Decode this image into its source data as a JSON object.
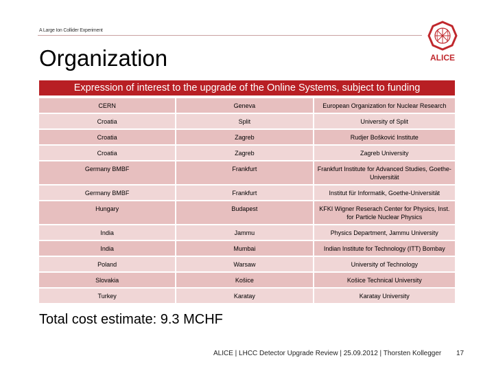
{
  "header": {
    "tagline": "A Large Ion Collider Experiment",
    "logo_text": "ALICE",
    "title": "Organization"
  },
  "banner": "Expression of interest to the upgrade of the Online Systems, subject to funding",
  "table": {
    "rows": [
      [
        "CERN",
        "Geneva",
        "European Organization for Nuclear Research"
      ],
      [
        "Croatia",
        "Split",
        "University of Split"
      ],
      [
        "Croatia",
        "Zagreb",
        "Rudjer Bošković Institute"
      ],
      [
        "Croatia",
        "Zagreb",
        "Zagreb University"
      ],
      [
        "Germany BMBF",
        "Frankfurt",
        "Frankfurt Institute for Advanced Studies, Goethe-Universität"
      ],
      [
        "Germany BMBF",
        "Frankfurt",
        "Institut für Informatik, Goethe-Universität"
      ],
      [
        "Hungary",
        "Budapest",
        "KFKI Wigner Reserach Center for Physics, Inst. for Particle Nuclear Physics"
      ],
      [
        "India",
        "Jammu",
        "Physics Department, Jammu University"
      ],
      [
        "India",
        "Mumbai",
        "Indian Institute for Technology (ITT) Bombay"
      ],
      [
        "Poland",
        "Warsaw",
        "University of Technology"
      ],
      [
        "Slovakia",
        "Košice",
        "Košice Technical University"
      ],
      [
        "Turkey",
        "Karatay",
        "Karatay University"
      ]
    ]
  },
  "total": "Total cost estimate: 9.3 MCHF",
  "footer": {
    "text": "ALICE | LHCC Detector Upgrade Review | 25.09.2012 | Thorsten Kollegger",
    "page": "17"
  },
  "colors": {
    "accent": "#b81f24",
    "row_light": "#f0d6d6",
    "row_dark": "#e7bfbf"
  }
}
